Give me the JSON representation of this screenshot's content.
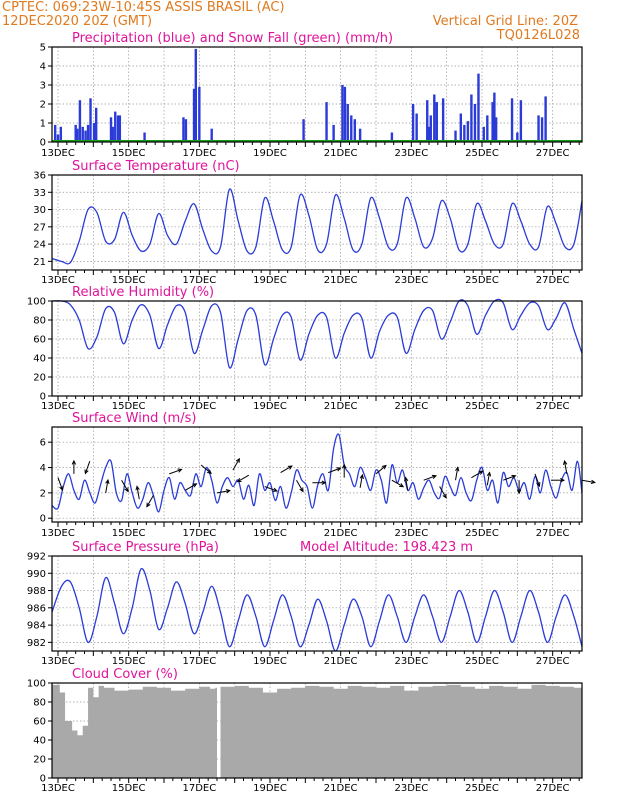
{
  "header": {
    "line1": "CPTEC:    069:23W-10:45S   ASSIS BRASIL (AC)",
    "line2_left": "12DEC2020 20Z (GMT)",
    "line2_right": "Vertical Grid Line: 20Z",
    "run_code": "TQ0126L028"
  },
  "colors": {
    "header": "#e07a1f",
    "panel_title": "#e0139a",
    "series": "#2a3bd8",
    "snow": "#1a9a1a",
    "arrow": "#000000",
    "cloud": "#a9a9a9",
    "grid": "#999999"
  },
  "x_axis": {
    "day_labels": [
      "13DEC",
      "15DEC",
      "17DEC",
      "19DEC",
      "21DEC",
      "23DEC",
      "25DEC",
      "27DEC"
    ],
    "start": "12DEC2020 20Z",
    "end": "27DEC2020 20Z"
  },
  "chart_data": [
    {
      "id": "precip",
      "type": "bar",
      "title": "Precipitation (blue) and Snow Fall (green) (mm/h)",
      "yticks": [
        "5",
        "4",
        "3",
        "2",
        "1",
        "0"
      ],
      "ylim": [
        0,
        5
      ],
      "series": [
        {
          "name": "Precipitation",
          "x": [
            12.92,
            13.0,
            13.08,
            13.5,
            13.55,
            13.62,
            13.7,
            13.78,
            13.85,
            13.92,
            14.02,
            14.08,
            14.5,
            14.55,
            14.62,
            14.7,
            14.75,
            15.45,
            16.55,
            16.62,
            16.85,
            16.9,
            17.0,
            17.35,
            19.95,
            20.6,
            20.8,
            21.05,
            21.12,
            21.2,
            21.3,
            21.4,
            21.55,
            22.45,
            23.05,
            23.15,
            23.45,
            23.5,
            23.55,
            23.65,
            23.72,
            23.9,
            24.25,
            24.4,
            24.5,
            24.6,
            24.7,
            24.8,
            24.9,
            25.05,
            25.15,
            25.3,
            25.35,
            25.4,
            25.85,
            26.0,
            26.1,
            26.6,
            26.7,
            26.8
          ],
          "values": [
            0.9,
            0.4,
            0.8,
            0.9,
            0.7,
            2.2,
            0.8,
            0.6,
            0.9,
            2.3,
            1.0,
            1.8,
            1.3,
            0.8,
            1.6,
            1.4,
            1.4,
            0.5,
            1.3,
            1.2,
            2.8,
            4.9,
            2.9,
            0.7,
            1.2,
            2.1,
            0.9,
            3.0,
            2.9,
            2.0,
            1.4,
            1.2,
            0.7,
            0.5,
            2.0,
            1.5,
            2.2,
            0.8,
            1.4,
            2.5,
            2.1,
            2.3,
            0.6,
            1.5,
            0.9,
            1.1,
            2.5,
            2.0,
            3.6,
            0.8,
            1.4,
            2.1,
            2.6,
            1.3,
            2.3,
            0.5,
            2.2,
            1.4,
            1.3,
            2.4
          ]
        },
        {
          "name": "Snow Fall",
          "x": [
            12.83,
            27.83
          ],
          "values": [
            0,
            0
          ]
        }
      ]
    },
    {
      "id": "temperature",
      "type": "line",
      "title": "Surface Temperature (nC)",
      "yticks": [
        "36",
        "33",
        "30",
        "27",
        "24",
        "21"
      ],
      "ylim": [
        19.5,
        36
      ],
      "x": [
        12.83,
        13.1,
        13.35,
        13.6,
        13.85,
        14.1,
        14.35,
        14.6,
        14.85,
        15.1,
        15.35,
        15.6,
        15.85,
        16.1,
        16.35,
        16.6,
        16.85,
        17.1,
        17.35,
        17.6,
        17.85,
        18.1,
        18.35,
        18.6,
        18.85,
        19.1,
        19.35,
        19.6,
        19.85,
        20.1,
        20.35,
        20.6,
        20.85,
        21.1,
        21.35,
        21.6,
        21.85,
        22.1,
        22.35,
        22.6,
        22.85,
        23.1,
        23.35,
        23.6,
        23.85,
        24.1,
        24.35,
        24.6,
        24.85,
        25.1,
        25.35,
        25.6,
        25.85,
        26.1,
        26.35,
        26.6,
        26.85,
        27.1,
        27.35,
        27.6,
        27.83
      ],
      "values": [
        21.5,
        21,
        20.8,
        24.5,
        30,
        29.5,
        24.5,
        24.8,
        29.5,
        25.5,
        22.8,
        24,
        29.3,
        25.5,
        24,
        28,
        31,
        26.5,
        22.8,
        23.5,
        33.5,
        28,
        22.8,
        23.5,
        32,
        28,
        23,
        23.5,
        32.5,
        29,
        23,
        24,
        32.5,
        28.5,
        23,
        24,
        32,
        28.5,
        23.5,
        24,
        32,
        28.5,
        23.5,
        25,
        31.5,
        28.5,
        23,
        24,
        31,
        28,
        24,
        24,
        31,
        28,
        24,
        23.5,
        30.5,
        27.5,
        23.5,
        24,
        31.5
      ]
    },
    {
      "id": "humidity",
      "type": "line",
      "title": "Relative Humidity (%)",
      "yticks": [
        "100",
        "80",
        "60",
        "40",
        "20",
        "0"
      ],
      "ylim": [
        0,
        100
      ],
      "x": [
        12.83,
        13.1,
        13.35,
        13.6,
        13.85,
        14.1,
        14.35,
        14.6,
        14.85,
        15.1,
        15.35,
        15.6,
        15.85,
        16.1,
        16.35,
        16.6,
        16.85,
        17.1,
        17.35,
        17.6,
        17.85,
        18.1,
        18.35,
        18.6,
        18.85,
        19.1,
        19.35,
        19.6,
        19.85,
        20.1,
        20.35,
        20.6,
        20.85,
        21.1,
        21.35,
        21.6,
        21.85,
        22.1,
        22.35,
        22.6,
        22.85,
        23.1,
        23.35,
        23.6,
        23.85,
        24.1,
        24.35,
        24.6,
        24.85,
        25.1,
        25.35,
        25.6,
        25.85,
        26.1,
        26.35,
        26.6,
        26.85,
        27.1,
        27.35,
        27.6,
        27.83
      ],
      "values": [
        100,
        100,
        96,
        80,
        50,
        62,
        92,
        88,
        55,
        80,
        96,
        85,
        50,
        75,
        95,
        88,
        45,
        70,
        95,
        88,
        30,
        60,
        90,
        85,
        33,
        60,
        85,
        83,
        38,
        65,
        85,
        83,
        40,
        66,
        85,
        82,
        40,
        68,
        85,
        83,
        45,
        70,
        90,
        90,
        60,
        78,
        100,
        95,
        65,
        85,
        100,
        98,
        70,
        85,
        98,
        95,
        70,
        82,
        98,
        70,
        45
      ]
    },
    {
      "id": "wind",
      "type": "line",
      "title": "Surface Wind (m/s)",
      "yticks": [
        "6",
        "4",
        "2",
        "0"
      ],
      "ylim": [
        -0.3,
        7.2
      ],
      "x": [
        12.83,
        13.0,
        13.15,
        13.3,
        13.45,
        13.6,
        13.75,
        13.9,
        14.05,
        14.2,
        14.35,
        14.5,
        14.65,
        14.8,
        14.95,
        15.1,
        15.25,
        15.4,
        15.55,
        15.7,
        15.85,
        16.0,
        16.15,
        16.3,
        16.45,
        16.6,
        16.75,
        16.9,
        17.05,
        17.2,
        17.35,
        17.5,
        17.65,
        17.8,
        17.95,
        18.1,
        18.25,
        18.4,
        18.55,
        18.7,
        18.85,
        19.0,
        19.15,
        19.3,
        19.45,
        19.6,
        19.75,
        19.9,
        20.05,
        20.2,
        20.35,
        20.5,
        20.65,
        20.8,
        20.95,
        21.1,
        21.25,
        21.4,
        21.55,
        21.7,
        21.85,
        22.0,
        22.15,
        22.3,
        22.45,
        22.6,
        22.75,
        22.9,
        23.05,
        23.2,
        23.35,
        23.5,
        23.65,
        23.8,
        23.95,
        24.1,
        24.25,
        24.4,
        24.55,
        24.7,
        24.85,
        25.0,
        25.15,
        25.3,
        25.45,
        25.6,
        25.75,
        25.9,
        26.05,
        26.2,
        26.35,
        26.5,
        26.65,
        26.8,
        26.95,
        27.1,
        27.25,
        27.4,
        27.55,
        27.7,
        27.83
      ],
      "values": [
        1.0,
        0.8,
        2.5,
        3.5,
        2.2,
        1.5,
        3.0,
        2.0,
        1.2,
        2.6,
        4.0,
        4.5,
        2.0,
        1.4,
        3.5,
        2.0,
        0.8,
        1.5,
        2.8,
        1.8,
        0.5,
        2.2,
        3.2,
        1.5,
        2.8,
        2.2,
        1.8,
        3.5,
        2.5,
        4.0,
        3.0,
        1.2,
        2.5,
        3.2,
        2.5,
        3.0,
        1.5,
        2.6,
        1.0,
        3.5,
        2.2,
        2.8,
        1.4,
        2.5,
        0.8,
        2.0,
        3.8,
        3.0,
        2.5,
        0.8,
        2.6,
        3.5,
        2.2,
        5.5,
        6.6,
        4.2,
        3.5,
        2.5,
        4.0,
        3.2,
        2.2,
        3.8,
        3.0,
        1.2,
        4.2,
        2.8,
        3.8,
        2.2,
        2.8,
        1.5,
        2.4,
        3.0,
        2.0,
        1.6,
        3.3,
        2.5,
        1.8,
        3.2,
        2.0,
        1.4,
        3.0,
        4.0,
        2.2,
        3.0,
        1.2,
        3.6,
        2.5,
        3.2,
        2.2,
        2.8,
        1.5,
        3.3,
        2.0,
        3.8,
        2.5,
        1.6,
        3.0,
        3.6,
        2.2,
        4.5,
        2.0
      ],
      "arrows_x": [
        13.0,
        13.45,
        13.9,
        14.35,
        14.8,
        15.3,
        15.7,
        16.15,
        16.6,
        17.05,
        17.5,
        17.95,
        18.4,
        18.85,
        19.3,
        19.75,
        20.2,
        20.65,
        21.1,
        21.55,
        22.0,
        22.45,
        22.9,
        23.35,
        23.8,
        24.25,
        24.7,
        25.15,
        25.6,
        26.05,
        26.5,
        26.95,
        27.4,
        27.83
      ],
      "arrows_dir_deg": [
        -70,
        90,
        -110,
        80,
        -60,
        100,
        -120,
        20,
        30,
        -40,
        10,
        60,
        -150,
        -20,
        30,
        -60,
        0,
        20,
        90,
        80,
        40,
        -30,
        100,
        20,
        -60,
        80,
        30,
        80,
        20,
        -90,
        -70,
        0,
        100,
        -10
      ],
      "arrows_speed": [
        3.2,
        3.5,
        4.5,
        2.0,
        3.0,
        1.5,
        1.8,
        3.5,
        2.2,
        4.2,
        2.0,
        3.8,
        3.4,
        2.5,
        3.6,
        3.0,
        2.8,
        3.6,
        3.2,
        2.4,
        3.5,
        3.0,
        2.2,
        3.0,
        2.5,
        3.0,
        3.2,
        2.6,
        3.0,
        3.0,
        3.5,
        3.0,
        3.5,
        3.0
      ]
    },
    {
      "id": "pressure",
      "type": "line",
      "title": "Surface Pressure (hPa)",
      "subtitle": "Model Altitude: 198.423 m",
      "yticks": [
        "992",
        "990",
        "988",
        "986",
        "984",
        "982"
      ],
      "ylim": [
        981,
        992
      ],
      "x": [
        12.83,
        13.1,
        13.35,
        13.6,
        13.85,
        14.1,
        14.35,
        14.6,
        14.85,
        15.1,
        15.35,
        15.6,
        15.85,
        16.1,
        16.35,
        16.6,
        16.85,
        17.1,
        17.35,
        17.6,
        17.85,
        18.1,
        18.35,
        18.6,
        18.85,
        19.1,
        19.35,
        19.6,
        19.85,
        20.1,
        20.35,
        20.6,
        20.85,
        21.1,
        21.35,
        21.6,
        21.85,
        22.1,
        22.35,
        22.6,
        22.85,
        23.1,
        23.35,
        23.6,
        23.85,
        24.1,
        24.35,
        24.6,
        24.85,
        25.1,
        25.35,
        25.6,
        25.85,
        26.1,
        26.35,
        26.6,
        26.85,
        27.1,
        27.35,
        27.6,
        27.83
      ],
      "values": [
        985.5,
        988.5,
        989,
        986,
        982,
        985,
        989.5,
        986.5,
        983,
        986,
        990.5,
        988,
        983.5,
        986,
        989,
        986.5,
        983,
        985.5,
        988.5,
        985.5,
        981.5,
        984.5,
        987.5,
        985,
        981.5,
        984.5,
        987.5,
        985,
        981.5,
        984,
        987,
        984.5,
        981,
        984,
        987,
        985,
        981.5,
        984.5,
        987.5,
        985,
        982,
        985,
        987.5,
        985,
        982,
        985,
        988,
        985.5,
        982,
        985,
        988,
        985.5,
        982,
        985,
        988,
        985.5,
        982,
        985,
        987.5,
        985,
        981.5
      ]
    },
    {
      "id": "cloud",
      "type": "area",
      "title": "Cloud Cover (%)",
      "yticks": [
        "100",
        "80",
        "60",
        "40",
        "20",
        "0"
      ],
      "ylim": [
        0,
        100
      ],
      "x": [
        12.83,
        13.05,
        13.2,
        13.4,
        13.55,
        13.7,
        13.85,
        14.0,
        14.15,
        14.3,
        14.6,
        15.0,
        15.4,
        15.8,
        16.2,
        16.6,
        17.0,
        17.3,
        17.45,
        17.5,
        17.6,
        18.0,
        18.4,
        18.8,
        19.2,
        19.6,
        20.0,
        20.4,
        20.8,
        21.2,
        21.6,
        22.0,
        22.4,
        22.8,
        23.2,
        23.6,
        24.0,
        24.4,
        24.8,
        25.2,
        25.6,
        26.0,
        26.4,
        26.8,
        27.2,
        27.6,
        27.83
      ],
      "values": [
        98,
        90,
        60,
        50,
        45,
        55,
        95,
        85,
        97,
        95,
        92,
        93,
        96,
        95,
        92,
        94,
        96,
        94,
        95,
        0,
        96,
        97,
        95,
        90,
        94,
        95,
        97,
        96,
        94,
        97,
        96,
        95,
        97,
        92,
        96,
        97,
        98,
        96,
        94,
        97,
        96,
        94,
        98,
        97,
        96,
        95,
        94
      ]
    }
  ]
}
